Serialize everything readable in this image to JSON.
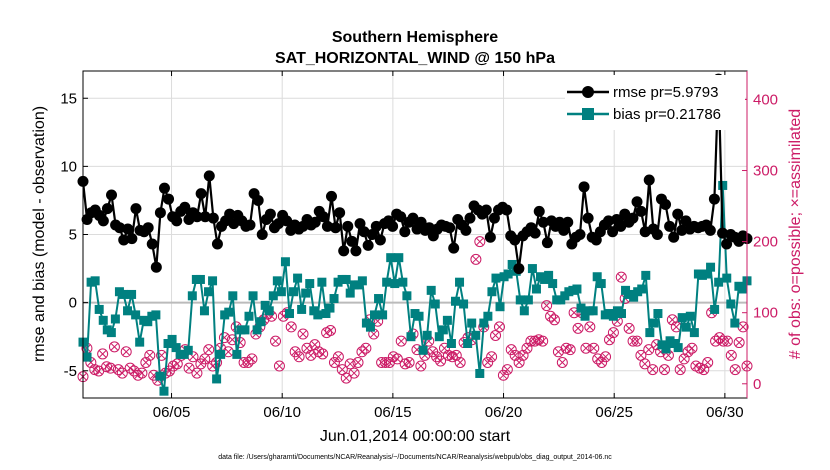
{
  "chart_data": {
    "type": "line",
    "title": "Southern Hemisphere",
    "subtitle": "SAT_HORIZONTAL_WIND @ 150 hPa",
    "xlabel": "Jun.01,2014 00:00:00 start",
    "ylabel": "rmse and bias (model - observation)",
    "y2label": "# of obs: o=possible; ×=assimilated",
    "footer": "data file: /Users/gharamti/Documents/NCAR/Reanalysis/~/Documents/NCAR/Reanalysis/webpub/obs_diag_output_2014-06.nc",
    "xlim": [
      1,
      31
    ],
    "ylim": [
      -7,
      17
    ],
    "y2lim": [
      -20,
      440
    ],
    "grid": true,
    "legend_position": "top-right",
    "xticks": [
      5,
      10,
      15,
      20,
      25,
      30
    ],
    "xtick_labels": [
      "06/05",
      "06/10",
      "06/15",
      "06/20",
      "06/25",
      "06/30"
    ],
    "yticks": [
      -5,
      0,
      5,
      10,
      15
    ],
    "y2ticks": [
      0,
      100,
      200,
      300,
      400
    ],
    "series": [
      {
        "name": "rmse pr=5.9793",
        "axis": "left",
        "color": "#000000",
        "marker": "circle",
        "values": [
          8.9,
          6.1,
          6.6,
          6.8,
          6.4,
          6.0,
          6.9,
          7.9,
          5.7,
          5.5,
          4.6,
          5.4,
          4.7,
          6.9,
          5.3,
          5.2,
          5.5,
          4.3,
          2.6,
          6.6,
          8.4,
          7.6,
          6.3,
          6.0,
          6.7,
          7.0,
          6.1,
          6.6,
          6.3,
          8.0,
          6.3,
          9.3,
          6.2,
          4.3,
          5.6,
          6.0,
          6.5,
          5.8,
          6.4,
          6.0,
          5.6,
          5.7,
          8.0,
          7.5,
          5.0,
          6.1,
          6.5,
          5.5,
          5.8,
          6.4,
          6.0,
          5.3,
          5.7,
          5.4,
          5.6,
          6.1,
          5.7,
          5.9,
          6.7,
          6.3,
          5.6,
          7.8,
          5.5,
          6.6,
          3.8,
          5.6,
          4.5,
          3.8,
          5.8,
          5.2,
          4.2,
          5.0,
          5.6,
          4.6,
          5.8,
          6.0,
          5.6,
          6.5,
          6.3,
          5.2,
          5.9,
          6.2,
          5.4,
          5.9,
          5.3,
          5.5,
          4.9,
          5.4,
          5.7,
          5.6,
          5.5,
          4.0,
          6.1,
          5.7,
          5.3,
          6.2,
          7.1,
          6.8,
          6.5,
          6.8,
          4.8,
          6.2,
          6.8,
          7.0,
          6.8,
          4.9,
          4.6,
          2.5,
          4.9,
          5.2,
          5.5,
          5.1,
          6.7,
          5.9,
          4.4,
          6.0,
          5.6,
          5.9,
          5.3,
          5.9,
          4.3,
          4.8,
          5.0,
          8.5,
          6.2,
          4.8,
          4.6,
          5.2,
          5.7,
          6.0,
          5.2,
          6.1,
          5.6,
          6.5,
          5.9,
          6.2,
          7.4,
          6.7,
          5.2,
          9.0,
          5.4,
          5.0,
          7.6,
          7.2,
          5.6,
          4.8,
          6.5,
          5.3,
          6.0,
          5.4,
          5.6,
          5.5,
          5.6,
          5.7,
          5.3,
          7.6,
          16.4,
          5.1,
          4.3,
          5.0,
          4.8,
          4.5,
          4.9,
          4.7
        ]
      },
      {
        "name": "bias pr=0.21786",
        "axis": "left",
        "color": "#008080",
        "marker": "square",
        "values": [
          -2.9,
          -4.0,
          1.5,
          1.6,
          -0.5,
          -1.3,
          -2.0,
          -2.2,
          -1.2,
          0.8,
          0.6,
          -0.6,
          0.6,
          -0.9,
          -2.9,
          -1.3,
          -1.4,
          -1.0,
          -0.9,
          -5.4,
          -6.5,
          -3.0,
          -2.7,
          -3.3,
          -3.8,
          -3.8,
          -3.5,
          0.5,
          1.7,
          1.7,
          -0.6,
          0.8,
          1.6,
          -5.6,
          -3.8,
          -0.9,
          -0.7,
          0.5,
          -3.8,
          -2.0,
          -2.0,
          -1.0,
          0.5,
          -2.0,
          -1.4,
          -0.2,
          -0.6,
          0.5,
          1.6,
          0.8,
          3.0,
          -0.8,
          0.8,
          1.8,
          -0.5,
          0.7,
          1.4,
          -0.6,
          -0.9,
          1.5,
          -0.8,
          -0.4,
          0.3,
          1.5,
          1.7,
          1.7,
          0.7,
          1.3,
          1.3,
          1.6,
          -1.5,
          -1.8,
          -0.9,
          0.3,
          -0.9,
          1.5,
          3.3,
          1.4,
          3.3,
          1.5,
          0.5,
          -2.5,
          -0.8,
          -1.0,
          -3.5,
          -2.4,
          0.9,
          -0.1,
          -2.5,
          -2.0,
          -1.3,
          -3.0,
          0.1,
          1.5,
          -0.1,
          -3.0,
          -1.5,
          -2.4,
          -5.2,
          -1.5,
          -1.0,
          0.8,
          1.8,
          -0.3,
          1.9,
          2.1,
          2.8,
          2.3,
          0.2,
          -0.6,
          0.2,
          2.5,
          1.0,
          1.9,
          1.7,
          2.0,
          1.4,
          0.2,
          0.2,
          0.5,
          0.8,
          0.9,
          1.0,
          -0.4,
          -1.0,
          -0.6,
          -0.6,
          1.9,
          1.4,
          -0.9,
          -0.8,
          -1.0,
          -0.6,
          -0.8,
          0.9,
          0.6,
          0.4,
          0.8,
          1.0,
          2.0,
          -2.2,
          -1.5,
          -0.8,
          -3.1,
          -3.4,
          -2.8,
          -3.0,
          -3.3,
          -1.1,
          -1.8,
          -1.0,
          -2.2,
          2.1,
          2.0,
          2.1,
          2.6,
          -0.5,
          1.5,
          8.6,
          1.8,
          -0.1,
          -1.5,
          1.2,
          1.0,
          1.6
        ]
      },
      {
        "name": "possible",
        "axis": "right",
        "color": "#cc1b66",
        "marker": "circle-open",
        "values": [
          10,
          50,
          30,
          20,
          18,
          42,
          24,
          22,
          52,
          20,
          15,
          45,
          22,
          18,
          12,
          15,
          30,
          40,
          12,
          5,
          40,
          15,
          18,
          25,
          28,
          40,
          48,
          22,
          38,
          15,
          28,
          35,
          48,
          25,
          30,
          50,
          65,
          45,
          62,
          80,
          58,
          30,
          30,
          35,
          70,
          80,
          90,
          98,
          95,
          60,
          25,
          95,
          100,
          80,
          45,
          38,
          70,
          50,
          40,
          55,
          45,
          42,
          72,
          75,
          30,
          38,
          20,
          8,
          28,
          15,
          30,
          45,
          50,
          90,
          70,
          88,
          30,
          30,
          30,
          38,
          35,
          60,
          28,
          30,
          70,
          48,
          25,
          40,
          60,
          45,
          38,
          32,
          50,
          40,
          38,
          40,
          30,
          58,
          65,
          62,
          175,
          200,
          80,
          30,
          38,
          68,
          80,
          12,
          20,
          48,
          40,
          30,
          40,
          50,
          60,
          60,
          62,
          60,
          110,
          95,
          90,
          45,
          30,
          50,
          48,
          100,
          78,
          100,
          50,
          80,
          50,
          35,
          30,
          38,
          62,
          72,
          88,
          150,
          120,
          78,
          60,
          60,
          40,
          28,
          48,
          20,
          55,
          45,
          20,
          40,
          90,
          80,
          20,
          35,
          45,
          50,
          25,
          22,
          20,
          30,
          100,
          60,
          65,
          60,
          60,
          40,
          20,
          58,
          80,
          25
        ]
      },
      {
        "name": "assimilated",
        "axis": "right",
        "color": "#cc1b66",
        "marker": "x",
        "values": [
          10,
          50,
          30,
          20,
          18,
          42,
          24,
          22,
          52,
          20,
          15,
          45,
          22,
          18,
          12,
          15,
          30,
          40,
          12,
          5,
          40,
          15,
          18,
          25,
          28,
          40,
          48,
          22,
          38,
          15,
          28,
          35,
          48,
          25,
          30,
          50,
          65,
          45,
          62,
          80,
          58,
          30,
          30,
          35,
          70,
          80,
          90,
          98,
          95,
          60,
          25,
          95,
          100,
          80,
          45,
          38,
          70,
          50,
          40,
          55,
          45,
          42,
          72,
          75,
          30,
          38,
          20,
          8,
          28,
          15,
          30,
          45,
          50,
          90,
          70,
          88,
          30,
          30,
          30,
          38,
          35,
          60,
          28,
          30,
          70,
          48,
          25,
          40,
          60,
          45,
          38,
          32,
          50,
          40,
          38,
          40,
          30,
          58,
          65,
          62,
          175,
          200,
          80,
          30,
          38,
          68,
          80,
          12,
          20,
          48,
          40,
          30,
          40,
          50,
          60,
          60,
          62,
          60,
          110,
          95,
          90,
          45,
          30,
          50,
          48,
          100,
          78,
          100,
          50,
          80,
          50,
          35,
          30,
          38,
          62,
          72,
          88,
          150,
          120,
          78,
          60,
          60,
          40,
          28,
          48,
          20,
          55,
          45,
          20,
          40,
          90,
          80,
          20,
          35,
          45,
          50,
          25,
          22,
          20,
          30,
          100,
          60,
          65,
          60,
          60,
          40,
          20,
          58,
          80,
          25
        ]
      }
    ]
  }
}
